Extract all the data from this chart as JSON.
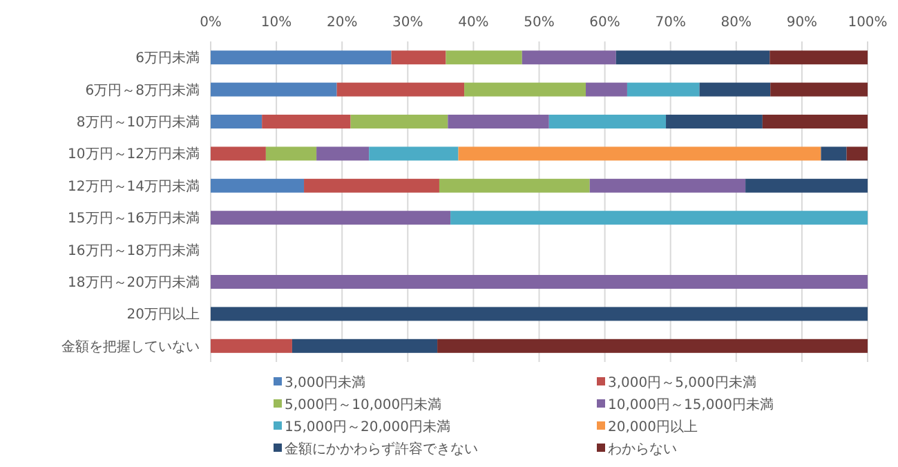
{
  "chart_data": {
    "type": "bar",
    "orientation": "horizontal",
    "stacked": true,
    "grid": "x",
    "legend": "bottom",
    "categories": [
      "6万円未満",
      "6万円～8万円未満",
      "8万円～10万円未満",
      "10万円～12万円未満",
      "12万円～14万円未満",
      "15万円～16万円未満",
      "16万円～18万円未満",
      "18万円～20万円未満",
      "20万円以上",
      "金額を把握していない"
    ],
    "xlim": [
      0,
      100
    ],
    "xticks": [
      {
        "value": 0,
        "label": "0%"
      },
      {
        "value": 10,
        "label": "10%"
      },
      {
        "value": 20,
        "label": "20%"
      },
      {
        "value": 30,
        "label": "30%"
      },
      {
        "value": 40,
        "label": "40%"
      },
      {
        "value": 50,
        "label": "50%"
      },
      {
        "value": 60,
        "label": "60%"
      },
      {
        "value": 70,
        "label": "70%"
      },
      {
        "value": 80,
        "label": "80%"
      },
      {
        "value": 90,
        "label": "90%"
      },
      {
        "value": 100,
        "label": "100%"
      }
    ],
    "series": [
      {
        "name": "3,000円未満",
        "color": "#4f81bd",
        "values": [
          27.5,
          19.2,
          7.8,
          null,
          14.2,
          null,
          null,
          null,
          null,
          null
        ]
      },
      {
        "name": "3,000円～5,000円未満",
        "color": "#c0504d",
        "values": [
          8.3,
          19.4,
          13.5,
          8.4,
          20.6,
          null,
          null,
          null,
          null,
          12.4
        ]
      },
      {
        "name": "5,000円～10,000円未満",
        "color": "#9bbb59",
        "values": [
          11.6,
          18.5,
          14.8,
          7.7,
          22.9,
          null,
          null,
          null,
          null,
          null
        ]
      },
      {
        "name": "10,000円～15,000円未満",
        "color": "#8064a2",
        "values": [
          14.3,
          6.3,
          15.4,
          8.0,
          23.7,
          36.5,
          null,
          100,
          null,
          null
        ]
      },
      {
        "name": "15,000円～20,000円未満",
        "color": "#4bacc6",
        "values": [
          null,
          11.0,
          17.8,
          13.6,
          null,
          63.5,
          null,
          null,
          null,
          null
        ]
      },
      {
        "name": "20,000円以上",
        "color": "#f79646",
        "values": [
          null,
          null,
          null,
          55.2,
          null,
          null,
          null,
          null,
          null,
          null
        ]
      },
      {
        "name": "金額にかかわらず許容できない",
        "color": "#2c4d75",
        "values": [
          23.4,
          10.8,
          14.7,
          3.9,
          18.6,
          null,
          null,
          null,
          100,
          22.1
        ]
      },
      {
        "name": "わからない",
        "color": "#772c2a",
        "values": [
          14.9,
          14.8,
          16.0,
          3.2,
          null,
          null,
          null,
          null,
          null,
          65.5
        ]
      }
    ]
  }
}
